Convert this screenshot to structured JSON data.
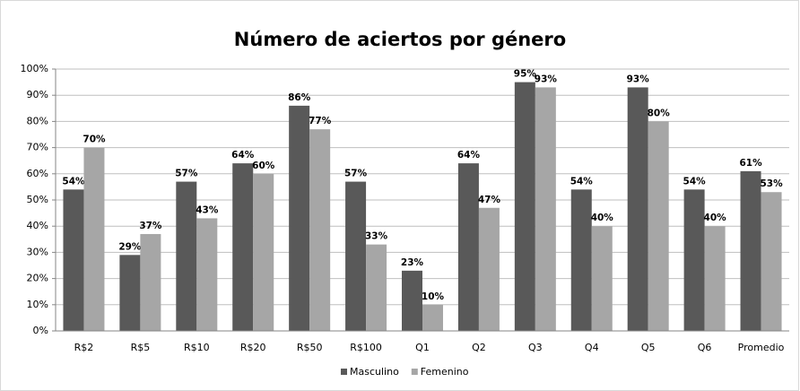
{
  "chart_data": {
    "type": "bar",
    "title": "Número de aciertos por género",
    "categories": [
      "R$2",
      "R$5",
      "R$10",
      "R$20",
      "R$50",
      "R$100",
      "Q1",
      "Q2",
      "Q3",
      "Q4",
      "Q5",
      "Q6",
      "Promedio"
    ],
    "series": [
      {
        "name": "Masculino",
        "color": "#595959",
        "values": [
          54,
          29,
          57,
          64,
          86,
          57,
          23,
          64,
          95,
          54,
          93,
          54,
          61
        ],
        "value_labels": [
          "54%",
          "29%",
          "57%",
          "64%",
          "86%",
          "57%",
          "23%",
          "64%",
          "95%",
          "54%",
          "93%",
          "54%",
          "61%"
        ]
      },
      {
        "name": "Femenino",
        "color": "#a6a6a6",
        "values": [
          70,
          37,
          43,
          60,
          77,
          33,
          10,
          47,
          93,
          40,
          80,
          40,
          53
        ],
        "value_labels": [
          "70%",
          "37%",
          "43%",
          "60%",
          "77%",
          "33%",
          "10%",
          "47%",
          "93%",
          "40%",
          "80%",
          "40%",
          "53%"
        ]
      }
    ],
    "ylim": [
      0,
      100
    ],
    "yticks": [
      {
        "value": 0,
        "label": "0%"
      },
      {
        "value": 10,
        "label": "10%"
      },
      {
        "value": 20,
        "label": "20%"
      },
      {
        "value": 30,
        "label": "30%"
      },
      {
        "value": 40,
        "label": "40%"
      },
      {
        "value": 50,
        "label": "50%"
      },
      {
        "value": 60,
        "label": "60%"
      },
      {
        "value": 70,
        "label": "70%"
      },
      {
        "value": 80,
        "label": "80%"
      },
      {
        "value": 90,
        "label": "90%"
      },
      {
        "value": 100,
        "label": "100%"
      }
    ],
    "grid": true,
    "legend": "bottom"
  }
}
